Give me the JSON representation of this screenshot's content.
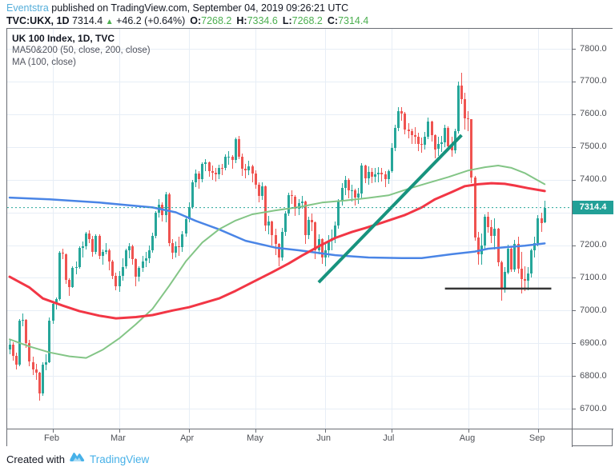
{
  "header": {
    "byline": {
      "author": "Eventstra",
      "rest": " published on TradingView.com, September 04, 2019 09:26:21 UTC"
    },
    "quote": {
      "symbol": "TVC:UKX, 1D",
      "last": "7314.4",
      "direction": "▲",
      "change": "+46.2 (+0.64%)",
      "ohlc": [
        {
          "k": "O:",
          "v": "7268.2"
        },
        {
          "k": "H:",
          "v": "7334.6"
        },
        {
          "k": "L:",
          "v": "7268.2"
        },
        {
          "k": "C:",
          "v": "7314.4"
        }
      ]
    }
  },
  "legend": {
    "title": "UK 100 Index, 1D, TVC",
    "ma_50_200": "MA50&200 (50, close, 200, close)",
    "ma_100": "MA (100, close)"
  },
  "footer": {
    "created_with": "Created with",
    "brand": "TradingView"
  },
  "colors": {
    "author_link": "#55aeda",
    "value_green": "#4caf50",
    "brand_blue": "#47b1e8",
    "text_dark": "#131722",
    "axis_text": "#4e5056",
    "grid": "#e7eef6"
  },
  "chart_data": {
    "type": "candlestick",
    "title": "UK 100 Index, 1D, TVC",
    "interval": "1D",
    "last_price": 7314.4,
    "up_color": "#26a69a",
    "down_color": "#ef5350",
    "price_axis": {
      "min": 6639,
      "max": 7861,
      "gridlines": [
        6700,
        6800,
        6900,
        7000,
        7100,
        7200,
        7300,
        7400,
        7500,
        7600,
        7700,
        7800
      ],
      "current_label": "7314.4",
      "current_label_color": "#22a097"
    },
    "x_axis": {
      "month_ticks": [
        {
          "label": "Feb",
          "index": 13
        },
        {
          "label": "Mar",
          "index": 33
        },
        {
          "label": "Apr",
          "index": 54
        },
        {
          "label": "May",
          "index": 74
        },
        {
          "label": "Jun",
          "index": 95
        },
        {
          "label": "Jul",
          "index": 115
        },
        {
          "label": "Aug",
          "index": 138
        },
        {
          "label": "Sep",
          "index": 159
        }
      ]
    },
    "candles": [
      [
        6880,
        6911,
        6866,
        6895
      ],
      [
        6895,
        6903,
        6848,
        6862
      ],
      [
        6862,
        6871,
        6820,
        6835
      ],
      [
        6835,
        6975,
        6830,
        6968
      ],
      [
        6968,
        6990,
        6952,
        6971
      ],
      [
        6971,
        6974,
        6886,
        6901
      ],
      [
        6901,
        6911,
        6829,
        6843
      ],
      [
        6843,
        6860,
        6803,
        6819
      ],
      [
        6819,
        6836,
        6787,
        6809
      ],
      [
        6809,
        6812,
        6725,
        6747
      ],
      [
        6747,
        6842,
        6738,
        6834
      ],
      [
        6834,
        6867,
        6817,
        6843
      ],
      [
        6843,
        6979,
        6840,
        6969
      ],
      [
        6969,
        7025,
        6958,
        7020
      ],
      [
        7020,
        7040,
        7002,
        7034
      ],
      [
        7034,
        7182,
        7031,
        7177
      ],
      [
        7177,
        7190,
        7156,
        7173
      ],
      [
        7173,
        7175,
        7081,
        7094
      ],
      [
        7094,
        7098,
        7045,
        7071
      ],
      [
        7071,
        7136,
        7068,
        7131
      ],
      [
        7131,
        7151,
        7112,
        7133
      ],
      [
        7133,
        7196,
        7128,
        7191
      ],
      [
        7191,
        7212,
        7163,
        7197
      ],
      [
        7197,
        7241,
        7186,
        7236
      ],
      [
        7236,
        7245,
        7205,
        7219
      ],
      [
        7219,
        7228,
        7164,
        7179
      ],
      [
        7179,
        7234,
        7172,
        7229
      ],
      [
        7229,
        7233,
        7157,
        7168
      ],
      [
        7168,
        7186,
        7140,
        7179
      ],
      [
        7179,
        7207,
        7172,
        7184
      ],
      [
        7184,
        7190,
        7123,
        7151
      ],
      [
        7151,
        7155,
        7095,
        7107
      ],
      [
        7107,
        7116,
        7061,
        7075
      ],
      [
        7075,
        7120,
        7056,
        7106
      ],
      [
        7106,
        7159,
        7091,
        7134
      ],
      [
        7134,
        7190,
        7129,
        7183
      ],
      [
        7183,
        7205,
        7160,
        7196
      ],
      [
        7196,
        7202,
        7140,
        7157
      ],
      [
        7157,
        7160,
        7073,
        7104
      ],
      [
        7104,
        7136,
        7089,
        7131
      ],
      [
        7131,
        7167,
        7119,
        7151
      ],
      [
        7151,
        7180,
        7133,
        7159
      ],
      [
        7159,
        7199,
        7146,
        7185
      ],
      [
        7185,
        7238,
        7176,
        7228
      ],
      [
        7228,
        7305,
        7221,
        7299
      ],
      [
        7299,
        7340,
        7285,
        7324
      ],
      [
        7324,
        7330,
        7271,
        7291
      ],
      [
        7291,
        7362,
        7270,
        7355
      ],
      [
        7355,
        7360,
        7196,
        7207
      ],
      [
        7207,
        7219,
        7156,
        7177
      ],
      [
        7177,
        7210,
        7162,
        7196
      ],
      [
        7196,
        7225,
        7167,
        7194
      ],
      [
        7194,
        7242,
        7178,
        7234
      ],
      [
        7234,
        7289,
        7225,
        7279
      ],
      [
        7279,
        7331,
        7270,
        7317
      ],
      [
        7317,
        7398,
        7310,
        7391
      ],
      [
        7391,
        7430,
        7378,
        7418
      ],
      [
        7418,
        7425,
        7371,
        7401
      ],
      [
        7401,
        7452,
        7391,
        7447
      ],
      [
        7447,
        7462,
        7425,
        7452
      ],
      [
        7452,
        7456,
        7409,
        7426
      ],
      [
        7426,
        7442,
        7398,
        7421
      ],
      [
        7421,
        7437,
        7394,
        7417
      ],
      [
        7417,
        7446,
        7401,
        7437
      ],
      [
        7437,
        7448,
        7414,
        7436
      ],
      [
        7436,
        7477,
        7428,
        7469
      ],
      [
        7469,
        7486,
        7446,
        7471
      ],
      [
        7471,
        7475,
        7433,
        7459
      ],
      [
        7459,
        7529,
        7451,
        7523
      ],
      [
        7523,
        7533,
        7462,
        7471
      ],
      [
        7471,
        7480,
        7411,
        7434
      ],
      [
        7434,
        7449,
        7405,
        7428
      ],
      [
        7428,
        7457,
        7414,
        7440
      ],
      [
        7440,
        7445,
        7391,
        7418
      ],
      [
        7418,
        7429,
        7371,
        7385
      ],
      [
        7385,
        7392,
        7331,
        7351
      ],
      [
        7351,
        7392,
        7339,
        7380
      ],
      [
        7380,
        7382,
        7242,
        7260
      ],
      [
        7260,
        7289,
        7233,
        7271
      ],
      [
        7271,
        7274,
        7198,
        7231
      ],
      [
        7231,
        7249,
        7168,
        7203
      ],
      [
        7203,
        7205,
        7135,
        7163
      ],
      [
        7163,
        7252,
        7153,
        7241
      ],
      [
        7241,
        7304,
        7228,
        7297
      ],
      [
        7297,
        7361,
        7289,
        7353
      ],
      [
        7353,
        7368,
        7325,
        7349
      ],
      [
        7349,
        7352,
        7290,
        7311
      ],
      [
        7311,
        7341,
        7291,
        7328
      ],
      [
        7328,
        7351,
        7310,
        7334
      ],
      [
        7334,
        7336,
        7204,
        7231
      ],
      [
        7231,
        7288,
        7218,
        7278
      ],
      [
        7278,
        7296,
        7243,
        7269
      ],
      [
        7269,
        7272,
        7158,
        7185
      ],
      [
        7185,
        7232,
        7171,
        7218
      ],
      [
        7218,
        7220,
        7142,
        7162
      ],
      [
        7162,
        7204,
        7135,
        7184
      ],
      [
        7184,
        7230,
        7161,
        7214
      ],
      [
        7214,
        7247,
        7184,
        7220
      ],
      [
        7220,
        7271,
        7205,
        7260
      ],
      [
        7260,
        7341,
        7251,
        7332
      ],
      [
        7332,
        7389,
        7320,
        7375
      ],
      [
        7375,
        7412,
        7352,
        7398
      ],
      [
        7398,
        7403,
        7342,
        7367
      ],
      [
        7367,
        7384,
        7332,
        7368
      ],
      [
        7368,
        7372,
        7322,
        7346
      ],
      [
        7346,
        7374,
        7326,
        7357
      ],
      [
        7357,
        7450,
        7342,
        7443
      ],
      [
        7443,
        7446,
        7390,
        7404
      ],
      [
        7404,
        7441,
        7385,
        7424
      ],
      [
        7424,
        7436,
        7388,
        7408
      ],
      [
        7408,
        7436,
        7392,
        7417
      ],
      [
        7417,
        7438,
        7391,
        7422
      ],
      [
        7422,
        7437,
        7394,
        7416
      ],
      [
        7416,
        7425,
        7378,
        7402
      ],
      [
        7402,
        7432,
        7386,
        7426
      ],
      [
        7426,
        7511,
        7421,
        7497
      ],
      [
        7497,
        7568,
        7487,
        7559
      ],
      [
        7559,
        7622,
        7549,
        7609
      ],
      [
        7609,
        7621,
        7580,
        7603
      ],
      [
        7603,
        7606,
        7538,
        7553
      ],
      [
        7553,
        7572,
        7525,
        7549
      ],
      [
        7549,
        7556,
        7509,
        7536
      ],
      [
        7536,
        7560,
        7508,
        7531
      ],
      [
        7531,
        7543,
        7487,
        7510
      ],
      [
        7510,
        7529,
        7482,
        7506
      ],
      [
        7506,
        7545,
        7493,
        7532
      ],
      [
        7532,
        7590,
        7524,
        7577
      ],
      [
        7577,
        7581,
        7516,
        7535
      ],
      [
        7535,
        7539,
        7466,
        7493
      ],
      [
        7493,
        7532,
        7472,
        7508
      ],
      [
        7508,
        7534,
        7484,
        7515
      ],
      [
        7515,
        7567,
        7500,
        7557
      ],
      [
        7557,
        7562,
        7486,
        7501
      ],
      [
        7501,
        7530,
        7470,
        7489
      ],
      [
        7489,
        7556,
        7479,
        7549
      ],
      [
        7549,
        7700,
        7540,
        7687
      ],
      [
        7687,
        7727,
        7632,
        7647
      ],
      [
        7647,
        7665,
        7554,
        7587
      ],
      [
        7587,
        7610,
        7548,
        7585
      ],
      [
        7585,
        7586,
        7390,
        7407
      ],
      [
        7407,
        7412,
        7212,
        7224
      ],
      [
        7224,
        7240,
        7140,
        7172
      ],
      [
        7172,
        7235,
        7140,
        7199
      ],
      [
        7199,
        7294,
        7188,
        7286
      ],
      [
        7286,
        7302,
        7237,
        7254
      ],
      [
        7254,
        7277,
        7206,
        7227
      ],
      [
        7227,
        7281,
        7186,
        7251
      ],
      [
        7251,
        7253,
        7136,
        7147
      ],
      [
        7147,
        7152,
        7030,
        7067
      ],
      [
        7067,
        7132,
        7055,
        7117
      ],
      [
        7117,
        7202,
        7111,
        7189
      ],
      [
        7189,
        7196,
        7117,
        7125
      ],
      [
        7125,
        7215,
        7119,
        7204
      ],
      [
        7204,
        7226,
        7113,
        7128
      ],
      [
        7128,
        7180,
        7051,
        7095
      ],
      [
        7095,
        7136,
        7059,
        7090
      ],
      [
        7090,
        7133,
        7061,
        7114
      ],
      [
        7114,
        7189,
        7101,
        7184
      ],
      [
        7184,
        7226,
        7162,
        7207
      ],
      [
        7207,
        7291,
        7197,
        7281
      ],
      [
        7281,
        7298,
        7240,
        7268
      ],
      [
        7268.2,
        7334.6,
        7268.2,
        7314.4
      ]
    ],
    "overlays": {
      "ma200": {
        "name": "MA 200 (close)",
        "color": "#4a85e6",
        "width": 2.5,
        "points": [
          [
            0,
            7345
          ],
          [
            12,
            7340
          ],
          [
            27,
            7330
          ],
          [
            43,
            7315
          ],
          [
            50,
            7300
          ],
          [
            56,
            7274
          ],
          [
            63,
            7248
          ],
          [
            71,
            7213
          ],
          [
            80,
            7192
          ],
          [
            87,
            7184
          ],
          [
            98,
            7169
          ],
          [
            108,
            7162
          ],
          [
            118,
            7160
          ],
          [
            124,
            7160
          ],
          [
            133,
            7172
          ],
          [
            140,
            7180
          ],
          [
            144,
            7189
          ],
          [
            150,
            7194
          ],
          [
            155,
            7198
          ],
          [
            161,
            7205
          ]
        ]
      },
      "ma50": {
        "name": "MA 50 (close)",
        "color": "#f23645",
        "width": 3,
        "points": [
          [
            0,
            7103
          ],
          [
            6,
            7070
          ],
          [
            10,
            7037
          ],
          [
            16,
            7015
          ],
          [
            21,
            6998
          ],
          [
            27,
            6984
          ],
          [
            32,
            6976
          ],
          [
            38,
            6980
          ],
          [
            43,
            6986
          ],
          [
            49,
            7000
          ],
          [
            54,
            7010
          ],
          [
            58,
            7022
          ],
          [
            63,
            7037
          ],
          [
            68,
            7060
          ],
          [
            73,
            7086
          ],
          [
            79,
            7117
          ],
          [
            84,
            7144
          ],
          [
            88,
            7168
          ],
          [
            93,
            7196
          ],
          [
            98,
            7222
          ],
          [
            103,
            7240
          ],
          [
            107,
            7252
          ],
          [
            112,
            7268
          ],
          [
            119,
            7292
          ],
          [
            124,
            7315
          ],
          [
            128,
            7340
          ],
          [
            133,
            7362
          ],
          [
            137,
            7380
          ],
          [
            141,
            7386
          ],
          [
            145,
            7389
          ],
          [
            149,
            7387
          ],
          [
            152,
            7382
          ],
          [
            156,
            7374
          ],
          [
            161,
            7365
          ]
        ]
      },
      "ma100": {
        "name": "MA 100 (close)",
        "color": "#83c586",
        "width": 2,
        "points": [
          [
            0,
            6912
          ],
          [
            6,
            6890
          ],
          [
            12,
            6872
          ],
          [
            18,
            6860
          ],
          [
            23,
            6855
          ],
          [
            28,
            6880
          ],
          [
            33,
            6915
          ],
          [
            38,
            6958
          ],
          [
            43,
            7005
          ],
          [
            48,
            7075
          ],
          [
            53,
            7150
          ],
          [
            58,
            7208
          ],
          [
            63,
            7248
          ],
          [
            68,
            7275
          ],
          [
            73,
            7294
          ],
          [
            80,
            7306
          ],
          [
            87,
            7316
          ],
          [
            94,
            7330
          ],
          [
            101,
            7336
          ],
          [
            108,
            7344
          ],
          [
            114,
            7352
          ],
          [
            120,
            7372
          ],
          [
            126,
            7390
          ],
          [
            132,
            7408
          ],
          [
            138,
            7428
          ],
          [
            143,
            7438
          ],
          [
            147,
            7443
          ],
          [
            151,
            7436
          ],
          [
            155,
            7420
          ],
          [
            158,
            7403
          ],
          [
            161,
            7386
          ]
        ]
      },
      "trendline": {
        "name": "drawn trend line",
        "color": "#17937e",
        "width": 4,
        "from": [
          93,
          7086
        ],
        "to": [
          136,
          7536
        ]
      },
      "support_line": {
        "name": "horizontal support line",
        "color": "#363636",
        "width": 2.5,
        "price": 7067,
        "from_index": 131,
        "to_index": 163
      },
      "current_price_line": {
        "price": 7314.4,
        "color": "#26a69a",
        "style": "dotted"
      }
    }
  }
}
